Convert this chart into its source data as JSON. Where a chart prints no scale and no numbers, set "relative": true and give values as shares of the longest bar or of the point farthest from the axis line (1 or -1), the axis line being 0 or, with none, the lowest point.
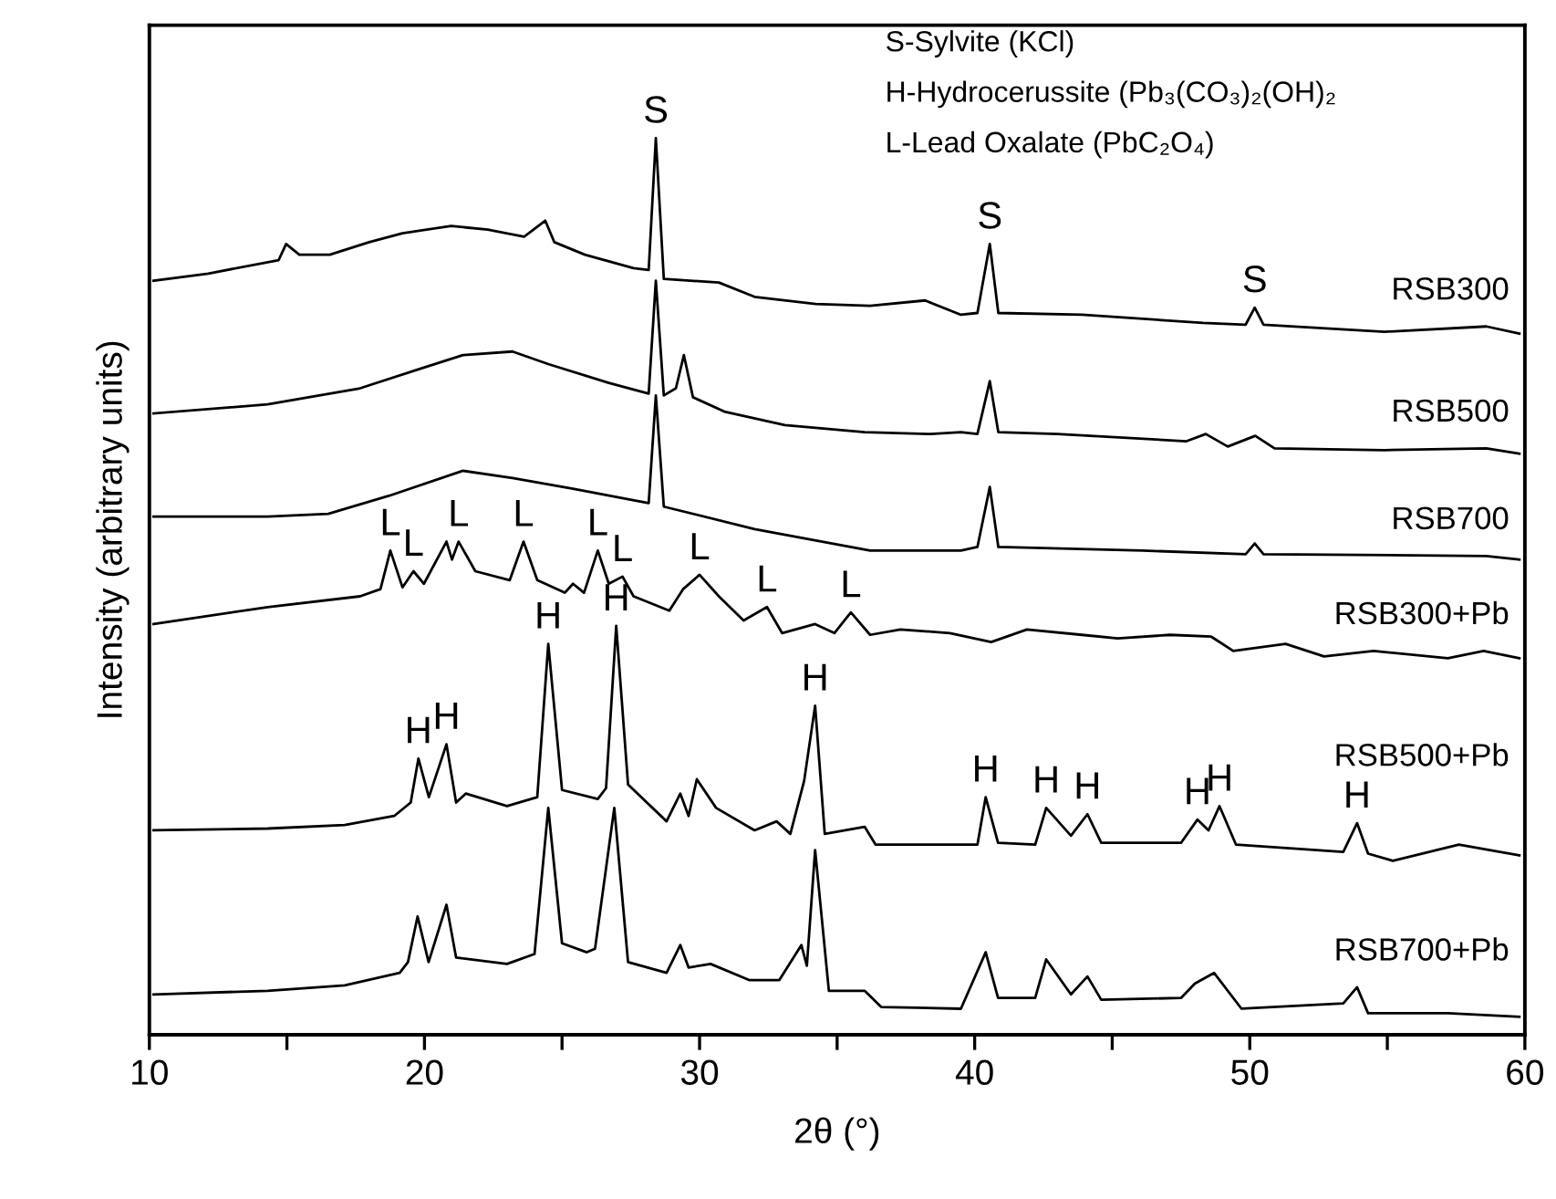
{
  "chart_data": {
    "type": "line",
    "relative": true,
    "xlabel": "2θ (°)",
    "ylabel": "Intensity (arbitrary units)",
    "xlim": [
      10,
      60
    ],
    "xticks": [
      10,
      {
        "value": 15,
        "label": null
      },
      20,
      {
        "value": 25,
        "label": null
      },
      30,
      {
        "value": 35,
        "label": null
      },
      40,
      {
        "value": 45,
        "label": null
      },
      50,
      {
        "value": 55,
        "label": null
      },
      60
    ],
    "tick_labels": "x",
    "series": [
      {
        "name": "RSB300",
        "color": "#000000",
        "x": [
          10.15,
          12.14,
          14.7,
          14.97,
          15.45,
          16.56,
          17.99,
          19.2,
          20.97,
          22.3,
          23.62,
          24.39,
          24.72,
          25.83,
          27.6,
          28.15,
          28.41,
          28.7,
          30.7,
          32.0,
          34.22,
          36.2,
          38.2,
          39.5,
          40.1,
          40.55,
          40.86,
          43.9,
          48.3,
          49.85,
          50.18,
          50.5,
          54.9,
          58.6,
          59.8
        ],
        "values": [
          0.841,
          0.849,
          0.864,
          0.882,
          0.87,
          0.87,
          0.884,
          0.894,
          0.902,
          0.898,
          0.89,
          0.908,
          0.884,
          0.87,
          0.855,
          0.853,
          1,
          0.843,
          0.839,
          0.823,
          0.815,
          0.813,
          0.819,
          0.803,
          0.805,
          0.882,
          0.805,
          0.803,
          0.794,
          0.792,
          0.811,
          0.792,
          0.784,
          0.79,
          0.782
        ]
      },
      {
        "name": "RSB500",
        "color": "#000000",
        "x": [
          10.15,
          14.3,
          17.66,
          19.87,
          21.4,
          23.2,
          24.5,
          26.7,
          28.15,
          28.41,
          28.7,
          29.14,
          29.43,
          29.76,
          30.9,
          33.1,
          36.0,
          38.4,
          39.5,
          40.1,
          40.55,
          40.86,
          43.0,
          47.7,
          48.4,
          49.2,
          50.2,
          50.9,
          54.9,
          58.6,
          59.8
        ],
        "values": [
          0.693,
          0.703,
          0.721,
          0.743,
          0.758,
          0.762,
          0.748,
          0.727,
          0.715,
          0.841,
          0.713,
          0.721,
          0.758,
          0.711,
          0.695,
          0.68,
          0.672,
          0.67,
          0.672,
          0.67,
          0.729,
          0.672,
          0.67,
          0.662,
          0.67,
          0.656,
          0.668,
          0.654,
          0.652,
          0.654,
          0.648
        ]
      },
      {
        "name": "RSB700",
        "color": "#000000",
        "x": [
          10.15,
          14.3,
          16.5,
          18.7,
          21.4,
          23.2,
          25.4,
          28.15,
          28.41,
          28.7,
          32.0,
          36.2,
          39.5,
          40.1,
          40.55,
          40.86,
          46.1,
          49.85,
          50.18,
          50.5,
          58.6,
          59.8
        ],
        "values": [
          0.578,
          0.578,
          0.581,
          0.601,
          0.629,
          0.621,
          0.609,
          0.593,
          0.713,
          0.589,
          0.564,
          0.54,
          0.54,
          0.544,
          0.611,
          0.544,
          0.54,
          0.536,
          0.548,
          0.536,
          0.534,
          0.53
        ]
      },
      {
        "name": "RSB300+Pb",
        "color": "#000000",
        "x": [
          10.15,
          14.3,
          17.66,
          18.4,
          18.76,
          19.2,
          19.6,
          19.98,
          20.8,
          21.0,
          21.24,
          21.85,
          23.1,
          23.6,
          24.1,
          25.1,
          25.4,
          25.8,
          26.3,
          26.7,
          27.2,
          27.6,
          28.9,
          29.4,
          30.0,
          30.7,
          31.6,
          32.45,
          33.0,
          34.2,
          34.9,
          35.5,
          36.2,
          37.3,
          39.1,
          40.6,
          41.9,
          43.9,
          45.2,
          47.1,
          48.6,
          49.4,
          51.3,
          52.7,
          54.5,
          57.2,
          58.5,
          59.8
        ],
        "values": [
          0.458,
          0.477,
          0.489,
          0.497,
          0.54,
          0.499,
          0.517,
          0.503,
          0.55,
          0.53,
          0.55,
          0.517,
          0.507,
          0.55,
          0.507,
          0.493,
          0.503,
          0.493,
          0.54,
          0.503,
          0.511,
          0.489,
          0.473,
          0.497,
          0.513,
          0.489,
          0.462,
          0.477,
          0.448,
          0.458,
          0.448,
          0.471,
          0.446,
          0.452,
          0.448,
          0.438,
          0.452,
          0.446,
          0.442,
          0.446,
          0.444,
          0.428,
          0.436,
          0.422,
          0.428,
          0.42,
          0.428,
          0.42
        ]
      },
      {
        "name": "RSB500+Pb",
        "color": "#000000",
        "x": [
          10.15,
          14.3,
          17.1,
          18.9,
          19.5,
          19.78,
          20.16,
          20.8,
          21.15,
          21.5,
          23.0,
          24.1,
          24.5,
          25.0,
          26.3,
          26.6,
          26.97,
          27.4,
          28.8,
          29.3,
          29.6,
          29.9,
          30.6,
          32.0,
          32.8,
          33.3,
          33.8,
          34.2,
          34.55,
          36.0,
          36.4,
          39.1,
          40.1,
          40.4,
          40.85,
          42.2,
          42.6,
          43.5,
          44.1,
          44.6,
          47.5,
          48.1,
          48.5,
          48.9,
          49.5,
          53.4,
          53.9,
          54.3,
          55.2,
          57.6,
          59.8
        ],
        "values": [
          0.228,
          0.23,
          0.234,
          0.244,
          0.259,
          0.308,
          0.265,
          0.324,
          0.259,
          0.269,
          0.255,
          0.265,
          0.436,
          0.273,
          0.263,
          0.275,
          0.456,
          0.279,
          0.238,
          0.269,
          0.244,
          0.285,
          0.253,
          0.228,
          0.238,
          0.224,
          0.283,
          0.367,
          0.224,
          0.232,
          0.212,
          0.212,
          0.212,
          0.265,
          0.214,
          0.212,
          0.253,
          0.222,
          0.246,
          0.214,
          0.214,
          0.24,
          0.228,
          0.255,
          0.212,
          0.204,
          0.236,
          0.202,
          0.194,
          0.212,
          0.2
        ]
      },
      {
        "name": "RSB700+Pb",
        "color": "#000000",
        "x": [
          10.15,
          14.3,
          17.1,
          19.1,
          19.4,
          19.75,
          20.15,
          20.8,
          21.15,
          23.0,
          24.0,
          24.5,
          25.0,
          25.9,
          26.2,
          26.9,
          27.4,
          28.8,
          29.3,
          29.6,
          30.4,
          31.8,
          32.9,
          33.7,
          33.9,
          34.2,
          34.7,
          36.0,
          36.6,
          39.5,
          40.4,
          40.85,
          42.2,
          42.6,
          43.5,
          44.1,
          44.6,
          47.5,
          48.0,
          48.7,
          49.7,
          53.4,
          53.9,
          54.3,
          57.2,
          59.8
        ],
        "values": [
          0.045,
          0.049,
          0.055,
          0.069,
          0.081,
          0.132,
          0.081,
          0.145,
          0.086,
          0.079,
          0.09,
          0.253,
          0.102,
          0.092,
          0.096,
          0.253,
          0.081,
          0.069,
          0.1,
          0.075,
          0.079,
          0.061,
          0.061,
          0.1,
          0.077,
          0.206,
          0.049,
          0.049,
          0.031,
          0.029,
          0.092,
          0.041,
          0.041,
          0.084,
          0.045,
          0.065,
          0.039,
          0.041,
          0.057,
          0.069,
          0.029,
          0.035,
          0.053,
          0.024,
          0.024,
          0.02
        ]
      }
    ],
    "annotations": [
      "S-Sylvite (KCl)",
      "H-Hydrocerussite (Pb₃(CO₃)₂(OH)₂",
      "L-Lead Oxalate (PbC₂O₄)",
      {
        "text": "S",
        "x": 28.41,
        "y": 1
      },
      {
        "text": "S",
        "x": 40.55,
        "y": 0.882
      },
      {
        "text": "S",
        "x": 50.18,
        "y": 0.811
      },
      {
        "text": "L",
        "x": 18.76,
        "y": 0.54
      },
      {
        "text": "L",
        "x": 19.6,
        "y": 0.517
      },
      {
        "text": "L",
        "x": 21.24,
        "y": 0.55
      },
      {
        "text": "L",
        "x": 23.6,
        "y": 0.55
      },
      {
        "text": "L",
        "x": 26.3,
        "y": 0.54
      },
      {
        "text": "L",
        "x": 27.2,
        "y": 0.511
      },
      {
        "text": "L",
        "x": 30.0,
        "y": 0.513
      },
      {
        "text": "L",
        "x": 32.45,
        "y": 0.477
      },
      {
        "text": "L",
        "x": 35.5,
        "y": 0.471
      },
      {
        "text": "H",
        "x": 19.78,
        "y": 0.308
      },
      {
        "text": "H",
        "x": 20.8,
        "y": 0.324
      },
      {
        "text": "H",
        "x": 24.5,
        "y": 0.436
      },
      {
        "text": "H",
        "x": 26.97,
        "y": 0.456
      },
      {
        "text": "H",
        "x": 34.2,
        "y": 0.367
      },
      {
        "text": "H",
        "x": 40.4,
        "y": 0.265
      },
      {
        "text": "H",
        "x": 42.6,
        "y": 0.253
      },
      {
        "text": "H",
        "x": 44.1,
        "y": 0.246
      },
      {
        "text": "H",
        "x": 48.1,
        "y": 0.24
      },
      {
        "text": "H",
        "x": 48.9,
        "y": 0.255
      },
      {
        "text": "H",
        "x": 53.9,
        "y": 0.236
      }
    ]
  }
}
